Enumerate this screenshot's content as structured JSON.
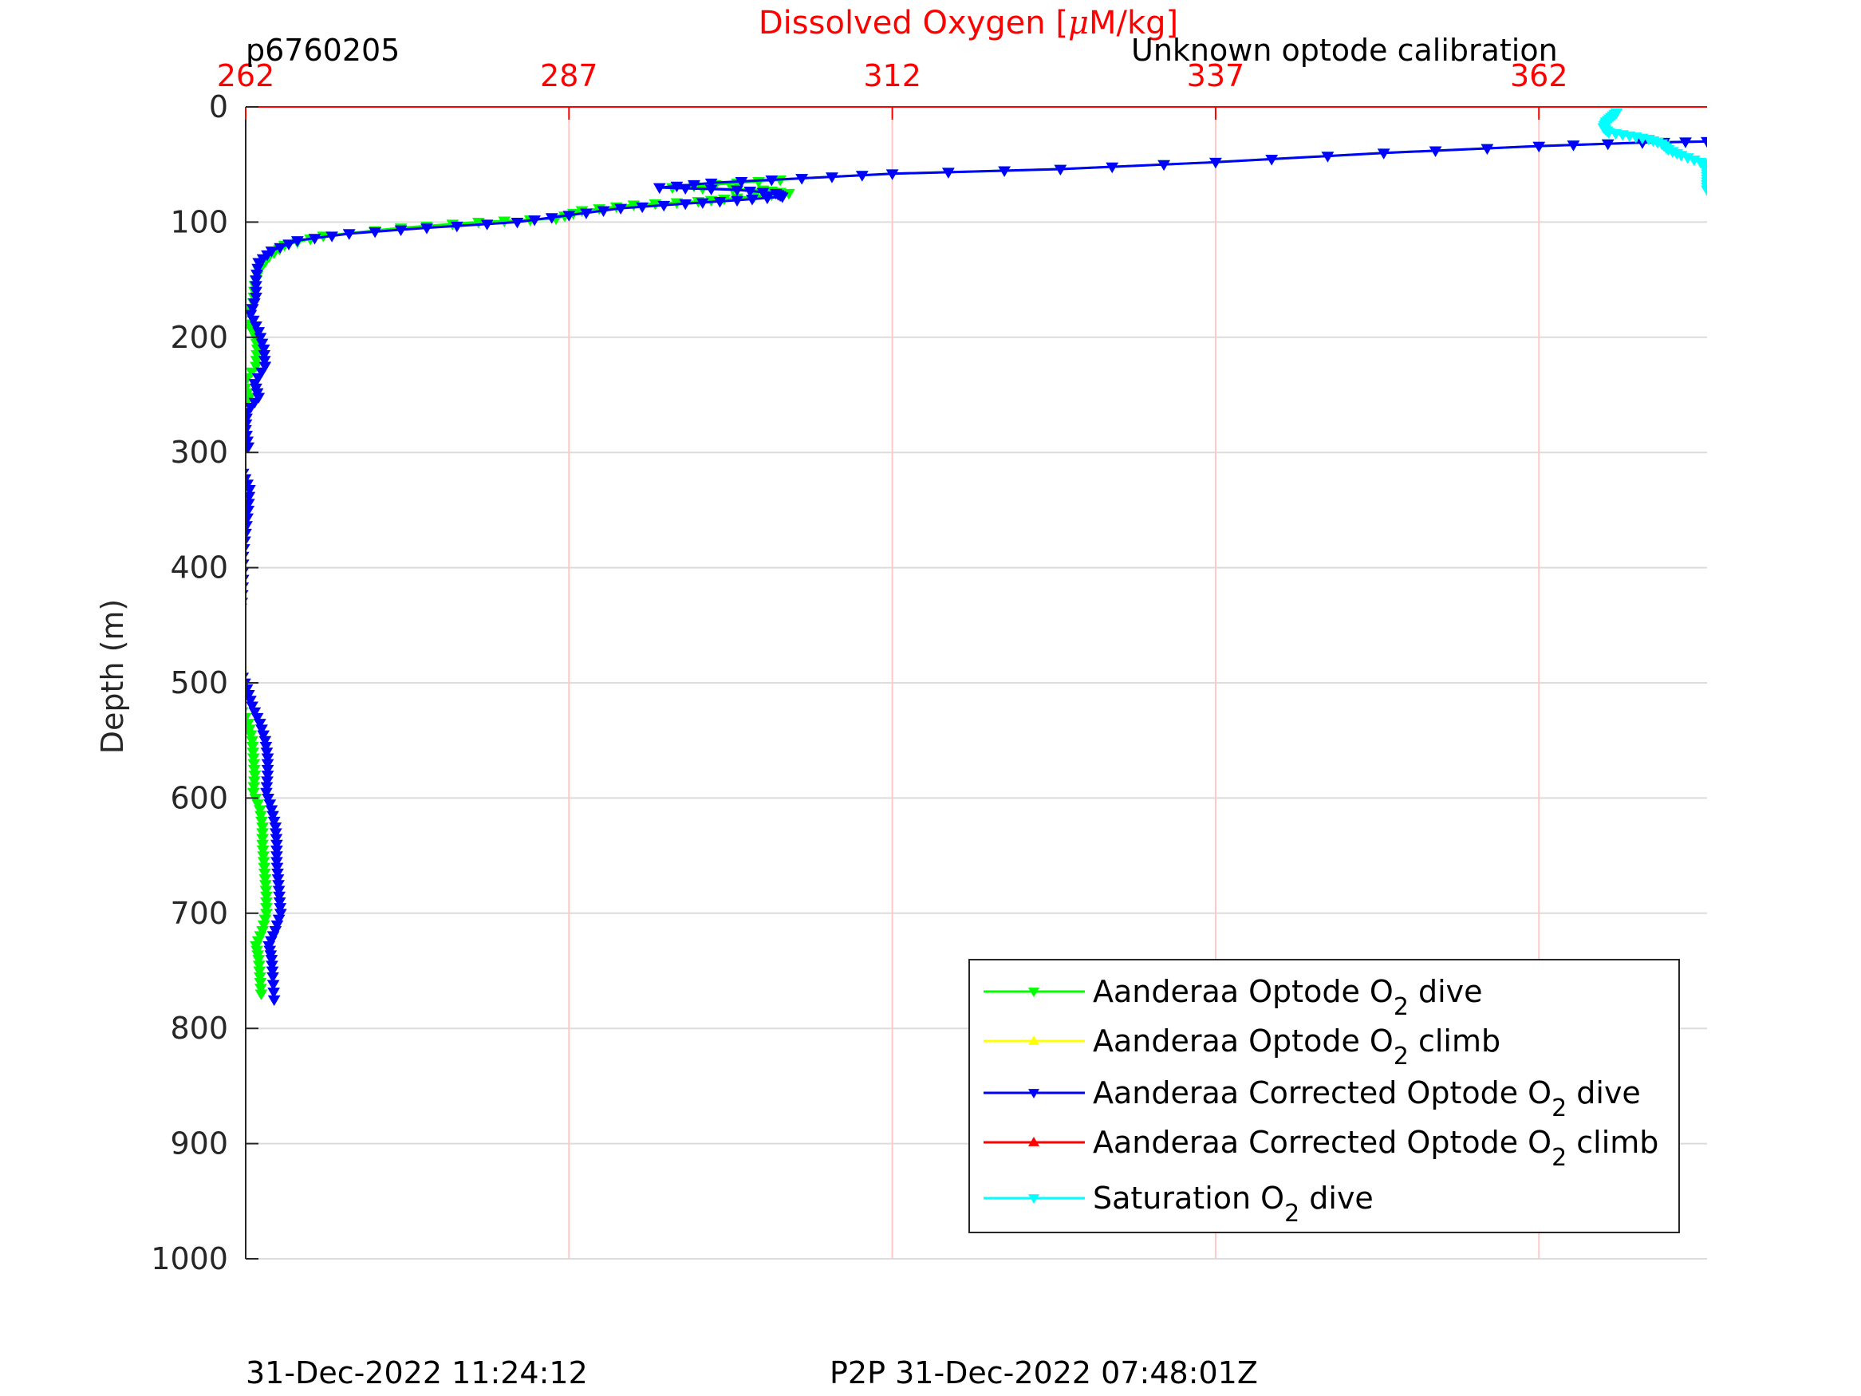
{
  "header": {
    "profile_id": "p6760205",
    "calibration_note": "Unknown optode calibration"
  },
  "footer": {
    "plot_time": "31-Dec-2022 11:24:12",
    "p2p_time": "P2P 31-Dec-2022 07:48:01Z"
  },
  "colors": {
    "axis_top": "#ff0000",
    "axis": "#262626",
    "grid": "#dcdcdc",
    "grid_x": "#ffc8c8",
    "optode_dive": "#00ff00",
    "optode_climb": "#ffff00",
    "corrected_dive": "#0000ff",
    "corrected_climb": "#ff0000",
    "saturation_dive": "#00ffff"
  },
  "chart_data": {
    "type": "line",
    "title": "",
    "xlabel_top": "Dissolved Oxygen [μM/kg]",
    "xlabel_unit_prefix": "Dissolved Oxygen [",
    "xlabel_unit_mu": "μ",
    "xlabel_unit_suffix": "M/kg]",
    "ylabel": "Depth (m)",
    "xlim": [
      262,
      375
    ],
    "ylim": [
      0,
      1000
    ],
    "y_reversed": true,
    "x_axis_position": "top",
    "x_ticks": [
      262,
      287,
      312,
      337,
      362
    ],
    "x_tick_labels": [
      "262",
      "287",
      "312",
      "337",
      "362"
    ],
    "y_ticks": [
      0,
      100,
      200,
      300,
      400,
      500,
      600,
      700,
      800,
      900,
      1000
    ],
    "y_tick_labels": [
      "0",
      "100",
      "200",
      "300",
      "400",
      "500",
      "600",
      "700",
      "800",
      "900",
      "1000"
    ],
    "grid": true,
    "legend_position": "bottom-right",
    "legend": [
      {
        "pre": "Aanderaa Optode O",
        "sub": "2",
        "post": " dive",
        "series": "optode_dive"
      },
      {
        "pre": "Aanderaa Optode O",
        "sub": "2",
        "post": " climb",
        "series": "optode_climb"
      },
      {
        "pre": "Aanderaa Corrected Optode O",
        "sub": "2",
        "post": " dive",
        "series": "corrected_dive"
      },
      {
        "pre": "Aanderaa Corrected Optode O",
        "sub": "2",
        "post": " climb",
        "series": "corrected_climb"
      },
      {
        "pre": "Saturation O",
        "sub": "2",
        "post": " dive",
        "series": "saturation_dive"
      }
    ],
    "series": [
      {
        "key": "optode_dive",
        "marker": "triangle-down",
        "points": [
          [
            375,
            30
          ],
          [
            370,
            31
          ],
          [
            362,
            34
          ],
          [
            350,
            40
          ],
          [
            337,
            48
          ],
          [
            325,
            54
          ],
          [
            312,
            58
          ],
          [
            305,
            62
          ],
          [
            300,
            66
          ],
          [
            295,
            70
          ],
          [
            302,
            72
          ],
          [
            304,
            75
          ],
          [
            300,
            79
          ],
          [
            297,
            82
          ],
          [
            292,
            85
          ],
          [
            288,
            90
          ],
          [
            286,
            97
          ],
          [
            280,
            100
          ],
          [
            274,
            105
          ],
          [
            268,
            112
          ],
          [
            265,
            120
          ],
          [
            263.8,
            130
          ],
          [
            263,
            142
          ],
          [
            262.7,
            155
          ],
          [
            262.6,
            170
          ],
          [
            261.7,
            185
          ],
          [
            262.7,
            195
          ],
          [
            262.9,
            210
          ],
          [
            262.8,
            225
          ],
          [
            261.8,
            240
          ],
          [
            262.3,
            252
          ],
          [
            261.4,
            265
          ],
          [
            261.4,
            280
          ],
          [
            261.3,
            295
          ],
          [
            260.3,
            308
          ],
          [
            261.0,
            318
          ],
          [
            261.4,
            332
          ],
          [
            261.3,
            350
          ],
          [
            261.0,
            370
          ],
          [
            260.9,
            390
          ],
          [
            260.9,
            410
          ],
          [
            260.8,
            430
          ],
          [
            260.6,
            445
          ],
          [
            260.4,
            460
          ],
          [
            260.3,
            475
          ],
          [
            260.7,
            490
          ],
          [
            261.2,
            505
          ],
          [
            261.5,
            520
          ],
          [
            262.2,
            535
          ],
          [
            262.5,
            550
          ],
          [
            262.6,
            565
          ],
          [
            262.7,
            580
          ],
          [
            262.6,
            595
          ],
          [
            263.1,
            610
          ],
          [
            263.3,
            625
          ],
          [
            263.3,
            640
          ],
          [
            263.4,
            655
          ],
          [
            263.5,
            670
          ],
          [
            263.6,
            685
          ],
          [
            263.6,
            700
          ],
          [
            263.3,
            715
          ],
          [
            262.8,
            728
          ],
          [
            263.0,
            740
          ],
          [
            263.1,
            755
          ],
          [
            263.2,
            770
          ]
        ]
      },
      {
        "key": "optode_climb",
        "marker": "triangle-up",
        "points": []
      },
      {
        "key": "corrected_dive",
        "marker": "triangle-down",
        "points": [
          [
            375,
            30
          ],
          [
            370,
            31
          ],
          [
            362,
            34
          ],
          [
            350,
            40
          ],
          [
            337,
            48
          ],
          [
            325,
            54
          ],
          [
            312,
            58
          ],
          [
            305,
            62
          ],
          [
            298,
            66
          ],
          [
            294,
            70
          ],
          [
            300,
            72
          ],
          [
            303,
            75
          ],
          [
            303.5,
            78
          ],
          [
            300,
            81
          ],
          [
            296,
            84
          ],
          [
            291,
            88
          ],
          [
            287,
            94
          ],
          [
            283,
            100
          ],
          [
            276,
            105
          ],
          [
            270,
            110
          ],
          [
            266,
            116
          ],
          [
            264,
            125
          ],
          [
            263,
            135
          ],
          [
            262.8,
            150
          ],
          [
            262.8,
            165
          ],
          [
            262.4,
            180
          ],
          [
            263.0,
            195
          ],
          [
            263.4,
            210
          ],
          [
            263.5,
            225
          ],
          [
            262.7,
            240
          ],
          [
            263.0,
            252
          ],
          [
            262.1,
            265
          ],
          [
            262.0,
            280
          ],
          [
            262.2,
            295
          ],
          [
            261.2,
            306
          ],
          [
            261.8,
            318
          ],
          [
            262.3,
            332
          ],
          [
            262.2,
            350
          ],
          [
            262.0,
            370
          ],
          [
            261.8,
            390
          ],
          [
            261.8,
            410
          ],
          [
            261.7,
            430
          ],
          [
            261.5,
            445
          ],
          [
            261.2,
            460
          ],
          [
            261.1,
            475
          ],
          [
            261.6,
            490
          ],
          [
            262.1,
            505
          ],
          [
            262.5,
            520
          ],
          [
            263.1,
            535
          ],
          [
            263.5,
            550
          ],
          [
            263.7,
            565
          ],
          [
            263.7,
            580
          ],
          [
            263.6,
            595
          ],
          [
            264.0,
            610
          ],
          [
            264.3,
            625
          ],
          [
            264.4,
            640
          ],
          [
            264.4,
            655
          ],
          [
            264.5,
            670
          ],
          [
            264.6,
            685
          ],
          [
            264.7,
            700
          ],
          [
            264.3,
            715
          ],
          [
            263.8,
            728
          ],
          [
            264.0,
            740
          ],
          [
            264.1,
            755
          ],
          [
            264.2,
            775
          ]
        ]
      },
      {
        "key": "corrected_climb",
        "marker": "triangle-up",
        "points": []
      },
      {
        "key": "saturation_dive",
        "marker": "triangle-down",
        "points": [
          [
            368,
            5
          ],
          [
            367.6,
            9
          ],
          [
            367.2,
            13
          ],
          [
            367.0,
            18
          ],
          [
            367.4,
            22
          ],
          [
            369,
            25
          ],
          [
            370.5,
            28
          ],
          [
            371.5,
            32
          ],
          [
            372,
            37
          ],
          [
            373,
            42
          ],
          [
            374.5,
            48
          ],
          [
            375,
            52
          ],
          [
            375,
            58
          ],
          [
            375,
            65
          ],
          [
            375,
            72
          ]
        ]
      }
    ]
  }
}
